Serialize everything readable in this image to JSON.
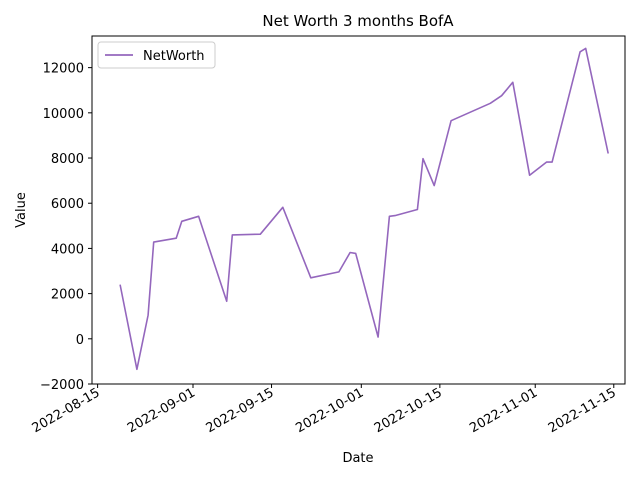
{
  "chart_data": {
    "type": "line",
    "title": "Net Worth 3 months BofA",
    "xlabel": "Date",
    "ylabel": "Value",
    "xlim": [
      "2022-08-14",
      "2022-11-17"
    ],
    "ylim": [
      -2000,
      13400
    ],
    "x_ticks": [
      "2022-08-15",
      "2022-09-01",
      "2022-09-15",
      "2022-10-01",
      "2022-10-15",
      "2022-11-01",
      "2022-11-15"
    ],
    "y_ticks": [
      -2000,
      0,
      2000,
      4000,
      6000,
      8000,
      10000,
      12000
    ],
    "grid": false,
    "legend": {
      "position": "upper left"
    },
    "series": [
      {
        "name": "NetWorth",
        "color": "#9467bd",
        "points": [
          [
            "2022-08-19",
            2400
          ],
          [
            "2022-08-22",
            -1350
          ],
          [
            "2022-08-24",
            1050
          ],
          [
            "2022-08-25",
            4280
          ],
          [
            "2022-08-29",
            4450
          ],
          [
            "2022-08-30",
            5200
          ],
          [
            "2022-09-02",
            5420
          ],
          [
            "2022-09-07",
            1660
          ],
          [
            "2022-09-08",
            4600
          ],
          [
            "2022-09-13",
            4630
          ],
          [
            "2022-09-17",
            5820
          ],
          [
            "2022-09-22",
            2700
          ],
          [
            "2022-09-27",
            2960
          ],
          [
            "2022-09-29",
            3820
          ],
          [
            "2022-09-30",
            3780
          ],
          [
            "2022-10-04",
            80
          ],
          [
            "2022-10-06",
            5420
          ],
          [
            "2022-10-07",
            5450
          ],
          [
            "2022-10-11",
            5720
          ],
          [
            "2022-10-12",
            7970
          ],
          [
            "2022-10-14",
            6780
          ],
          [
            "2022-10-17",
            9650
          ],
          [
            "2022-10-24",
            10420
          ],
          [
            "2022-10-26",
            10760
          ],
          [
            "2022-10-28",
            11350
          ],
          [
            "2022-10-31",
            7240
          ],
          [
            "2022-11-03",
            7820
          ],
          [
            "2022-11-04",
            7820
          ],
          [
            "2022-11-09",
            12700
          ],
          [
            "2022-11-10",
            12850
          ],
          [
            "2022-11-14",
            8200
          ]
        ]
      }
    ]
  }
}
